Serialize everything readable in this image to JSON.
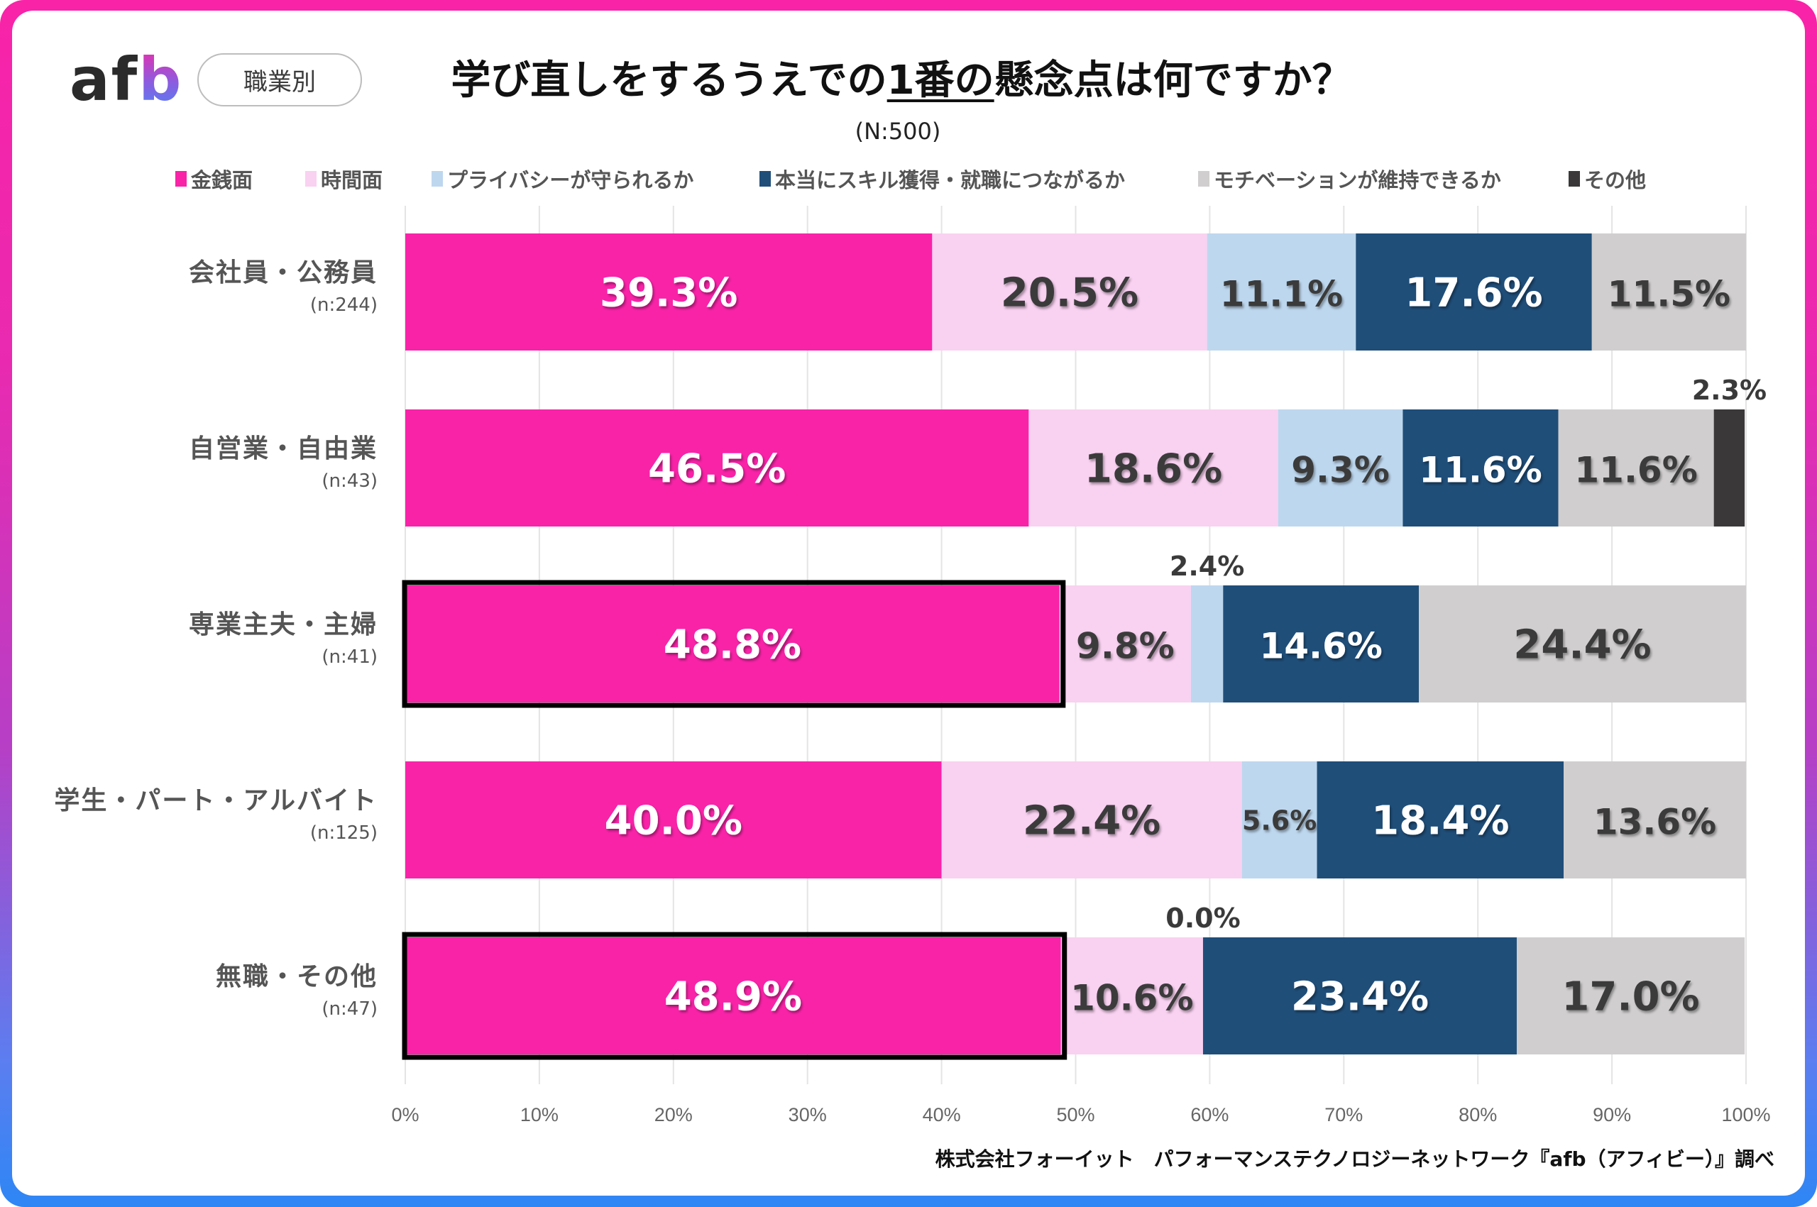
{
  "header": {
    "logo_text_left": "af",
    "logo_text_right": "b",
    "category_pill": "職業別",
    "title_before": "学び直しをするうえでの",
    "title_underlined": "1番の",
    "title_after": "懸念点は何ですか？",
    "sample_size": "(N:500)"
  },
  "footer": {
    "credit": "株式会社フォーイット　パフォーマンステクノロジーネットワーク『afb（アフィビー）』調べ"
  },
  "chart_data": {
    "type": "bar",
    "orientation": "horizontal",
    "stacked": "100%",
    "title": "学び直しをするうえでの1番の懸念点は何ですか？",
    "subtitle": "(N:500)",
    "xlim": [
      0,
      100
    ],
    "x_ticks": [
      "0%",
      "10%",
      "20%",
      "30%",
      "40%",
      "50%",
      "60%",
      "70%",
      "80%",
      "90%",
      "100%"
    ],
    "grid": true,
    "legend_position": "top",
    "categories": [
      {
        "name": "会社員・公務員",
        "n": "(n:244)",
        "highlight": false
      },
      {
        "name": "自営業・自由業",
        "n": "(n:43)",
        "highlight": false
      },
      {
        "name": "専業主夫・主婦",
        "n": "(n:41)",
        "highlight": true
      },
      {
        "name": "学生・パート・アルバイト",
        "n": "(n:125)",
        "highlight": false
      },
      {
        "name": "無職・その他",
        "n": "(n:47)",
        "highlight": true
      }
    ],
    "series": [
      {
        "name": "金銭面",
        "color": "#f923a8",
        "label_color": "#ffffff",
        "values": [
          39.3,
          46.5,
          48.8,
          40.0,
          48.9
        ],
        "labels": [
          "39.3%",
          "46.5%",
          "48.8%",
          "40.0%",
          "48.9%"
        ]
      },
      {
        "name": "時間面",
        "color": "#f9d1f1",
        "label_color": "#3a3a3a",
        "values": [
          20.5,
          18.6,
          9.8,
          22.4,
          10.6
        ],
        "labels": [
          "20.5%",
          "18.6%",
          "9.8%",
          "22.4%",
          "10.6%"
        ]
      },
      {
        "name": "プライバシーが守られるか",
        "color": "#bdd7ee",
        "label_color": "#3a3a3a",
        "values": [
          11.1,
          9.3,
          2.4,
          5.6,
          0.0
        ],
        "labels": [
          "11.1%",
          "9.3%",
          "2.4%",
          "5.6%",
          "0.0%"
        ]
      },
      {
        "name": "本当にスキル獲得・就職につながるか",
        "color": "#1f4e79",
        "label_color": "#ffffff",
        "values": [
          17.6,
          11.6,
          14.6,
          18.4,
          23.4
        ],
        "labels": [
          "17.6%",
          "11.6%",
          "14.6%",
          "18.4%",
          "23.4%"
        ]
      },
      {
        "name": "モチベーションが維持できるか",
        "color": "#d0cece",
        "label_color": "#3a3a3a",
        "values": [
          11.5,
          11.6,
          24.4,
          13.6,
          17.0
        ],
        "labels": [
          "11.5%",
          "11.6%",
          "24.4%",
          "13.6%",
          "17.0%"
        ]
      },
      {
        "name": "その他",
        "color": "#3a3838",
        "label_color": "#3a3a3a",
        "values": [
          0.0,
          2.3,
          0.0,
          0.0,
          0.0
        ],
        "labels": [
          null,
          "2.3%",
          null,
          null,
          null
        ]
      }
    ]
  }
}
